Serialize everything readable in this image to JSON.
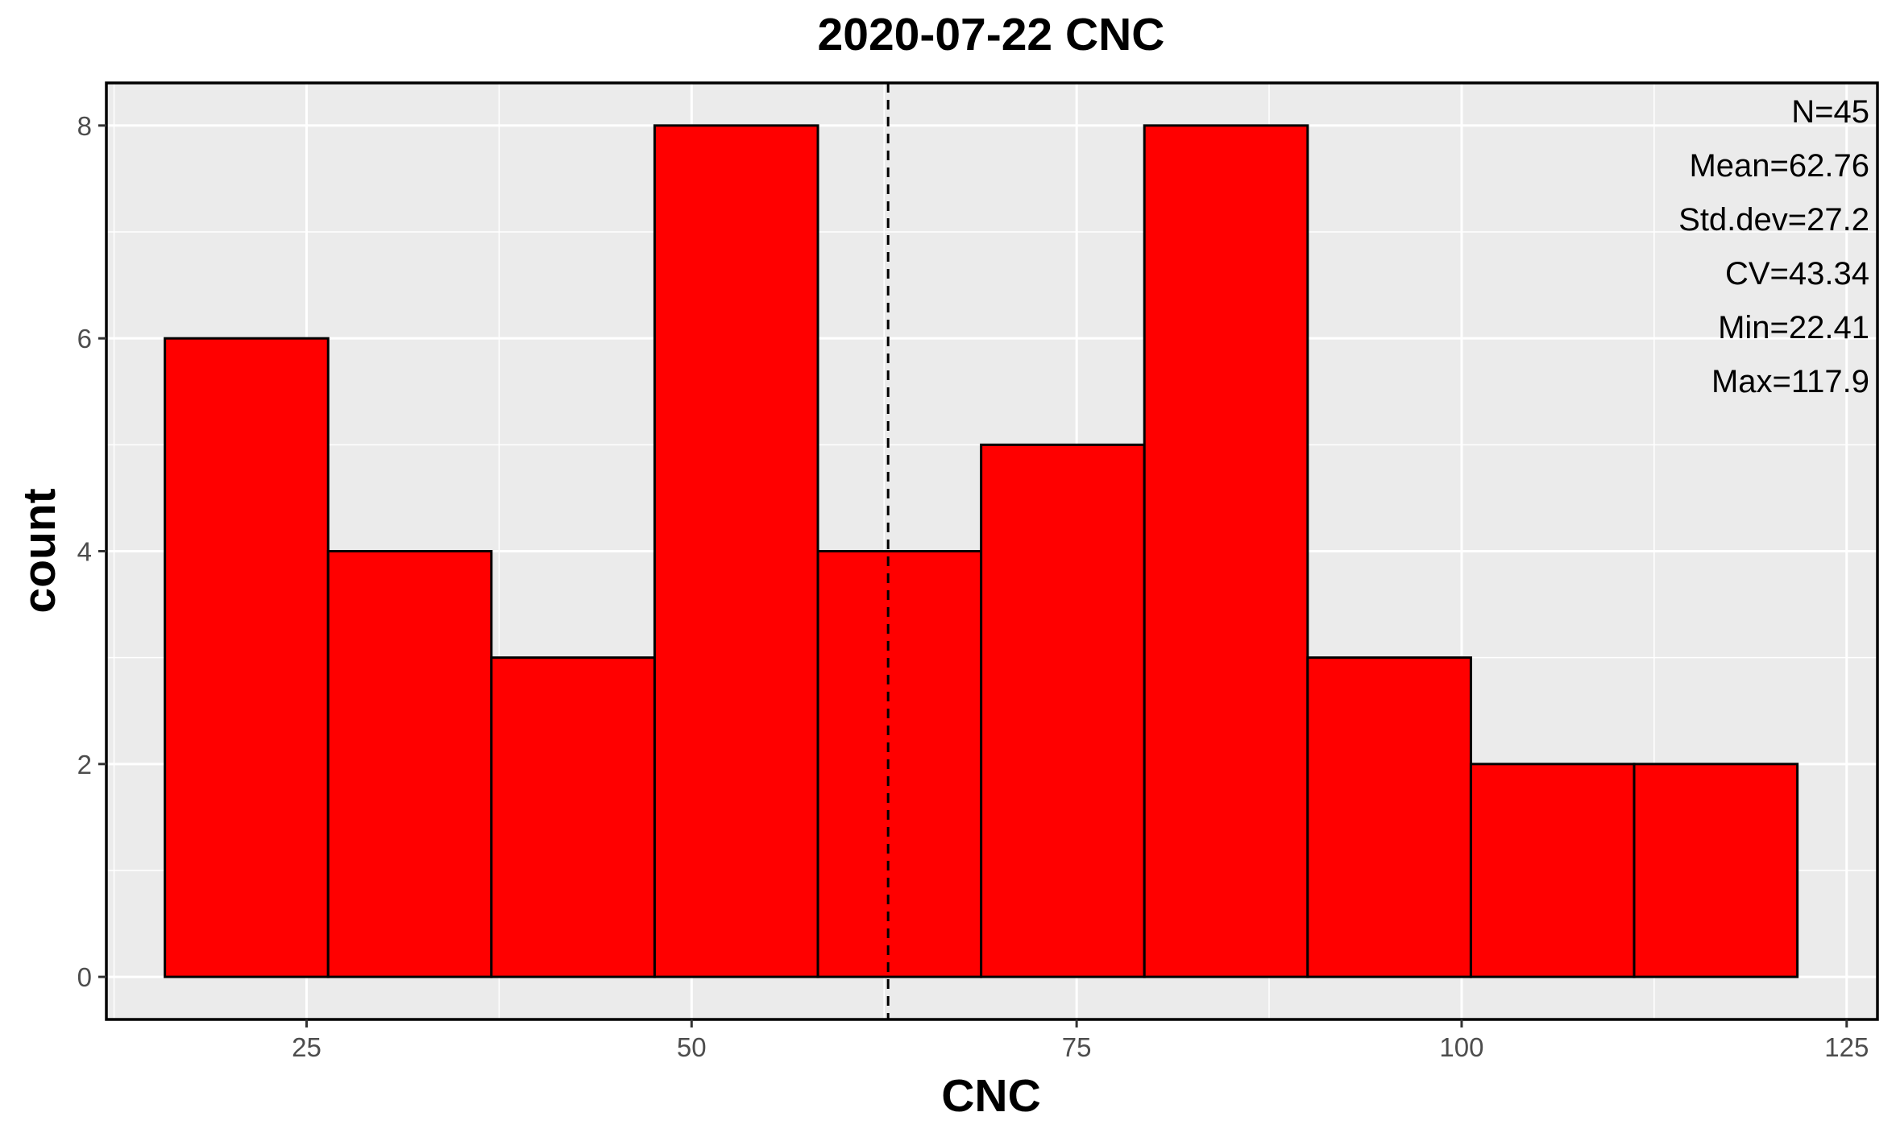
{
  "chart_data": {
    "type": "bar",
    "title": "2020-07-22 CNC",
    "xlabel": "CNC",
    "ylabel": "count",
    "xlim": [
      12,
      127
    ],
    "ylim": [
      -0.4,
      8.4
    ],
    "x_ticks": [
      25,
      50,
      75,
      100,
      125
    ],
    "x_tick_labels": [
      "25",
      "50",
      "75",
      "100",
      "125"
    ],
    "y_ticks": [
      0,
      2,
      4,
      6,
      8
    ],
    "y_tick_labels": [
      "0",
      "2",
      "4",
      "6",
      "8"
    ],
    "grid": true,
    "bins": [
      {
        "x0": 15.8,
        "x1": 26.4,
        "count": 6
      },
      {
        "x0": 26.4,
        "x1": 37.0,
        "count": 4
      },
      {
        "x0": 37.0,
        "x1": 47.6,
        "count": 3
      },
      {
        "x0": 47.6,
        "x1": 58.2,
        "count": 8
      },
      {
        "x0": 58.2,
        "x1": 68.8,
        "count": 4
      },
      {
        "x0": 68.8,
        "x1": 79.4,
        "count": 5
      },
      {
        "x0": 79.4,
        "x1": 90.0,
        "count": 8
      },
      {
        "x0": 90.0,
        "x1": 100.6,
        "count": 3
      },
      {
        "x0": 100.6,
        "x1": 111.2,
        "count": 2
      },
      {
        "x0": 111.2,
        "x1": 121.8,
        "count": 2
      }
    ],
    "mean_line": 62.76,
    "annotations": [
      "N=45",
      "Mean=62.76",
      "Std.dev=27.2",
      "CV=43.34",
      "Min=22.41",
      "Max=117.9"
    ],
    "colors": {
      "bar_fill": "#ff0000",
      "bar_stroke": "#000000",
      "panel_background": "#ebebeb",
      "grid": "#ffffff",
      "mean_line": "#000000"
    }
  }
}
